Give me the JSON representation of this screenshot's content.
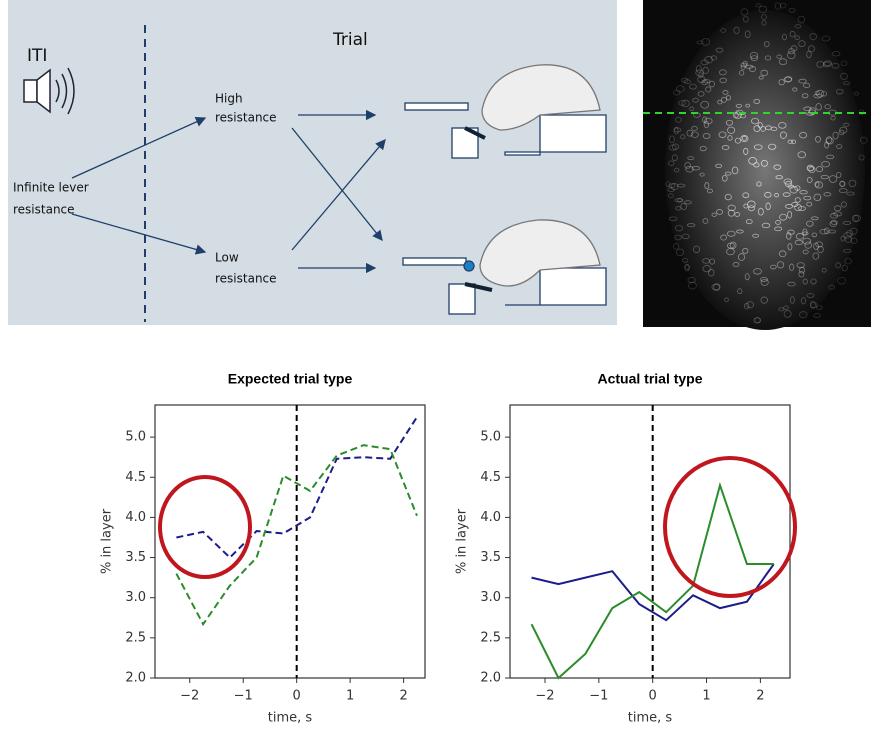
{
  "diagram": {
    "iti": "ITI",
    "trial": "Trial",
    "start": [
      "Infinite lever",
      "resistance"
    ],
    "high": [
      "High",
      "resistance"
    ],
    "low": [
      "Low",
      "resistance"
    ]
  },
  "chart_data": [
    {
      "type": "line",
      "title": "Expected trial type",
      "xlabel": "time, s",
      "ylabel": "% in layer",
      "x": [
        -2.25,
        -1.75,
        -1.25,
        -0.75,
        -0.25,
        0.25,
        0.75,
        1.25,
        1.75,
        2.25
      ],
      "series": [
        {
          "color": "#1c1c8a",
          "dash": true,
          "values": [
            3.75,
            3.82,
            3.5,
            3.83,
            3.8,
            4.0,
            4.73,
            4.75,
            4.73,
            5.25
          ]
        },
        {
          "color": "#2a8c2a",
          "dash": true,
          "values": [
            3.3,
            2.67,
            3.15,
            3.5,
            4.52,
            4.33,
            4.77,
            4.9,
            4.85,
            4.02
          ]
        }
      ],
      "vline": 0,
      "xlim": [
        -2.65,
        2.4
      ],
      "ylim": [
        2.0,
        5.4
      ],
      "xticks": [
        {
          "value": -2,
          "label": "−2"
        },
        {
          "value": -1,
          "label": "−1"
        },
        0,
        1,
        2
      ],
      "yticks": [
        {
          "value": 2,
          "label": "2.0"
        },
        2.5,
        {
          "value": 3,
          "label": "3.0"
        },
        3.5,
        {
          "value": 4,
          "label": "4.0"
        },
        4.5,
        {
          "value": 5,
          "label": "5.0"
        }
      ]
    },
    {
      "type": "line",
      "title": "Actual trial type",
      "xlabel": "time, s",
      "ylabel": "% in layer",
      "x": [
        -2.25,
        -1.75,
        -1.25,
        -0.75,
        -0.25,
        0.25,
        0.75,
        1.25,
        1.75,
        2.25
      ],
      "series": [
        {
          "color": "#1c1c8a",
          "dash": false,
          "values": [
            3.25,
            3.17,
            3.25,
            3.33,
            2.92,
            2.72,
            3.03,
            2.87,
            2.95,
            3.42
          ]
        },
        {
          "color": "#2a8c2a",
          "dash": false,
          "values": [
            2.67,
            2.0,
            2.3,
            2.87,
            3.07,
            2.82,
            3.15,
            4.4,
            3.42,
            3.42
          ]
        }
      ],
      "vline": 0,
      "xlim": [
        -2.65,
        2.55
      ],
      "ylim": [
        2.0,
        5.4
      ],
      "xticks": [
        {
          "value": -2,
          "label": "−2"
        },
        {
          "value": -1,
          "label": "−1"
        },
        0,
        1,
        2
      ],
      "yticks": [
        {
          "value": 2,
          "label": "2.0"
        },
        2.5,
        {
          "value": 3,
          "label": "3.0"
        },
        3.5,
        {
          "value": 4,
          "label": "4.0"
        },
        4.5,
        {
          "value": 5,
          "label": "5.0"
        }
      ]
    }
  ]
}
